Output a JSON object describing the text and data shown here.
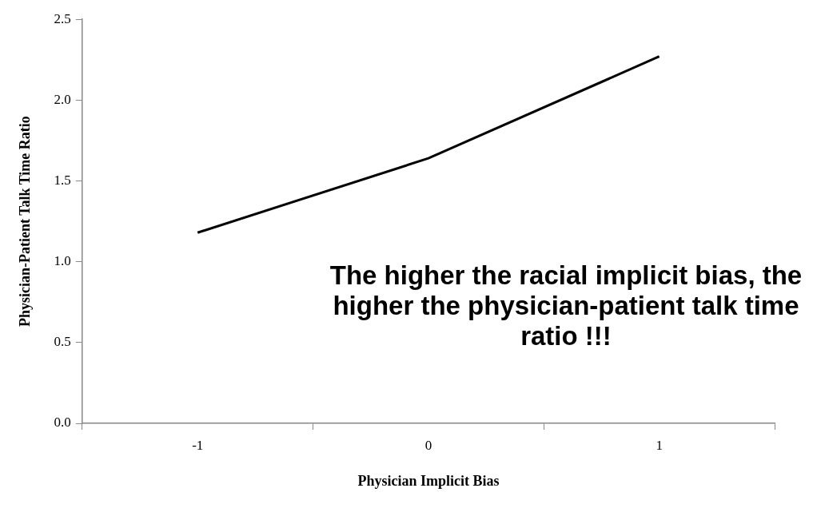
{
  "chart_data": {
    "type": "line",
    "xlabel": "Physician Implicit Bias",
    "ylabel": "Physician-Patient Talk Time Ratio",
    "categories": [
      "-1",
      "0",
      "1"
    ],
    "series": [
      {
        "color": "#000000",
        "values": [
          1.18,
          1.64,
          2.27
        ]
      }
    ],
    "ylim": [
      0,
      2.5
    ],
    "yticks": [
      {
        "value": 0,
        "label": "0.0"
      },
      {
        "value": 0.5,
        "label": "0.5"
      },
      {
        "value": 1,
        "label": "1.0"
      },
      {
        "value": 1.5,
        "label": "1.5"
      },
      {
        "value": 2,
        "label": "2.0"
      },
      {
        "value": 2.5,
        "label": "2.5"
      }
    ],
    "grid": false,
    "legend": false,
    "marker": "none",
    "line_style": "solid",
    "annotations": [
      "The higher the racial implicit bias, the higher the physician-patient talk time ratio !!!"
    ]
  }
}
